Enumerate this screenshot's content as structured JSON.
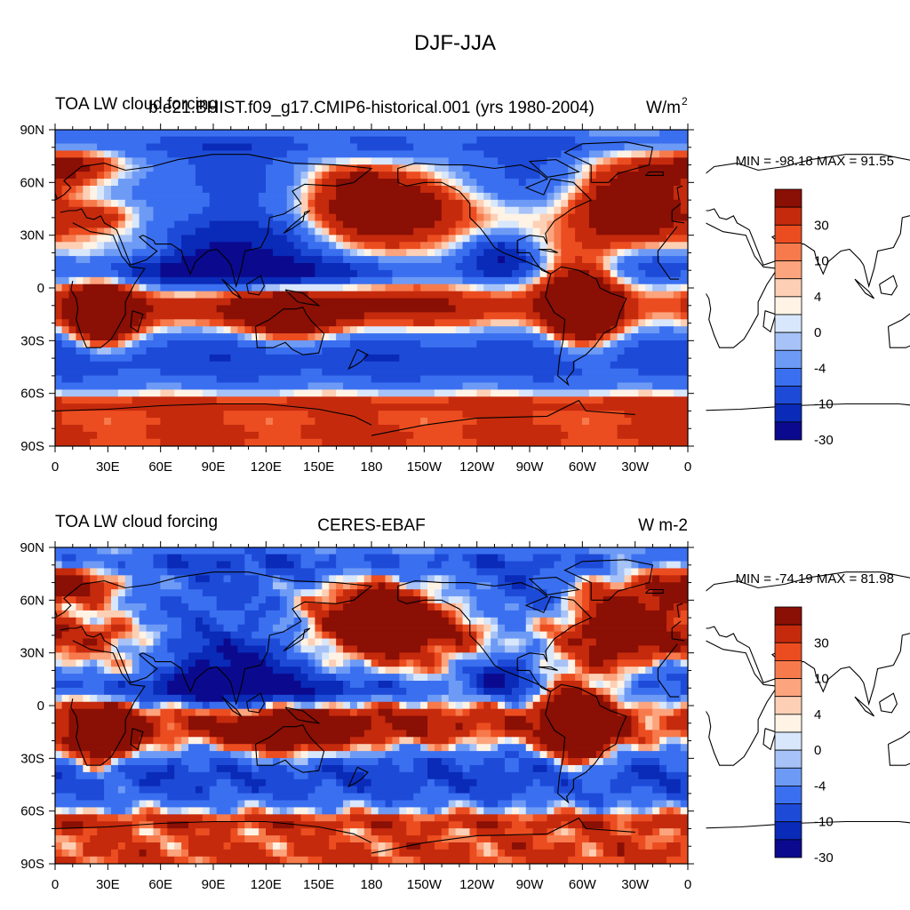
{
  "figure": {
    "title": "DJF-JJA"
  },
  "colors": {
    "levels": [
      "#0b0a8e",
      "#0a2ab8",
      "#1d4bd8",
      "#3a6ff0",
      "#6d9af5",
      "#a6c2f7",
      "#d8e7fb",
      "#fff3e6",
      "#fdd0b5",
      "#fca47d",
      "#f77a4c",
      "#ec4d20",
      "#c52a0d",
      "#8a0f04"
    ],
    "coast": "#000000"
  },
  "chart_data": [
    {
      "type": "heatmap",
      "left_title": "TOA LW cloud forcing",
      "center_title": "b.e21.BHIST.f09_g17.CMIP6-historical.001 (yrs 1980-2004)",
      "units": "W/m",
      "units_superscript": "2",
      "min": -98.18,
      "max": 91.55,
      "minmax_text": "MIN = -98.18 MAX =  91.55",
      "x_ticks": [
        "0",
        "30E",
        "60E",
        "90E",
        "120E",
        "150E",
        "180",
        "150W",
        "120W",
        "90W",
        "60W",
        "30W",
        "0"
      ],
      "y_ticks": [
        "90N",
        "60N",
        "30N",
        "0",
        "30S",
        "60S",
        "90S"
      ],
      "colorbar_labels": [
        "30",
        "10",
        "4",
        "0",
        "-4",
        "-10",
        "-30"
      ]
    },
    {
      "type": "heatmap",
      "left_title": "TOA LW cloud forcing",
      "center_title": "CERES-EBAF",
      "units": "W m-2",
      "units_superscript": "",
      "min": -74.19,
      "max": 81.98,
      "minmax_text": "MIN = -74.19 MAX =  81.98",
      "x_ticks": [
        "0",
        "30E",
        "60E",
        "90E",
        "120E",
        "150E",
        "180",
        "150W",
        "120W",
        "90W",
        "60W",
        "30W",
        "0"
      ],
      "y_ticks": [
        "90N",
        "60N",
        "30N",
        "0",
        "30S",
        "60S",
        "90S"
      ],
      "colorbar_labels": [
        "30",
        "10",
        "4",
        "0",
        "-4",
        "-10",
        "-30"
      ]
    }
  ]
}
